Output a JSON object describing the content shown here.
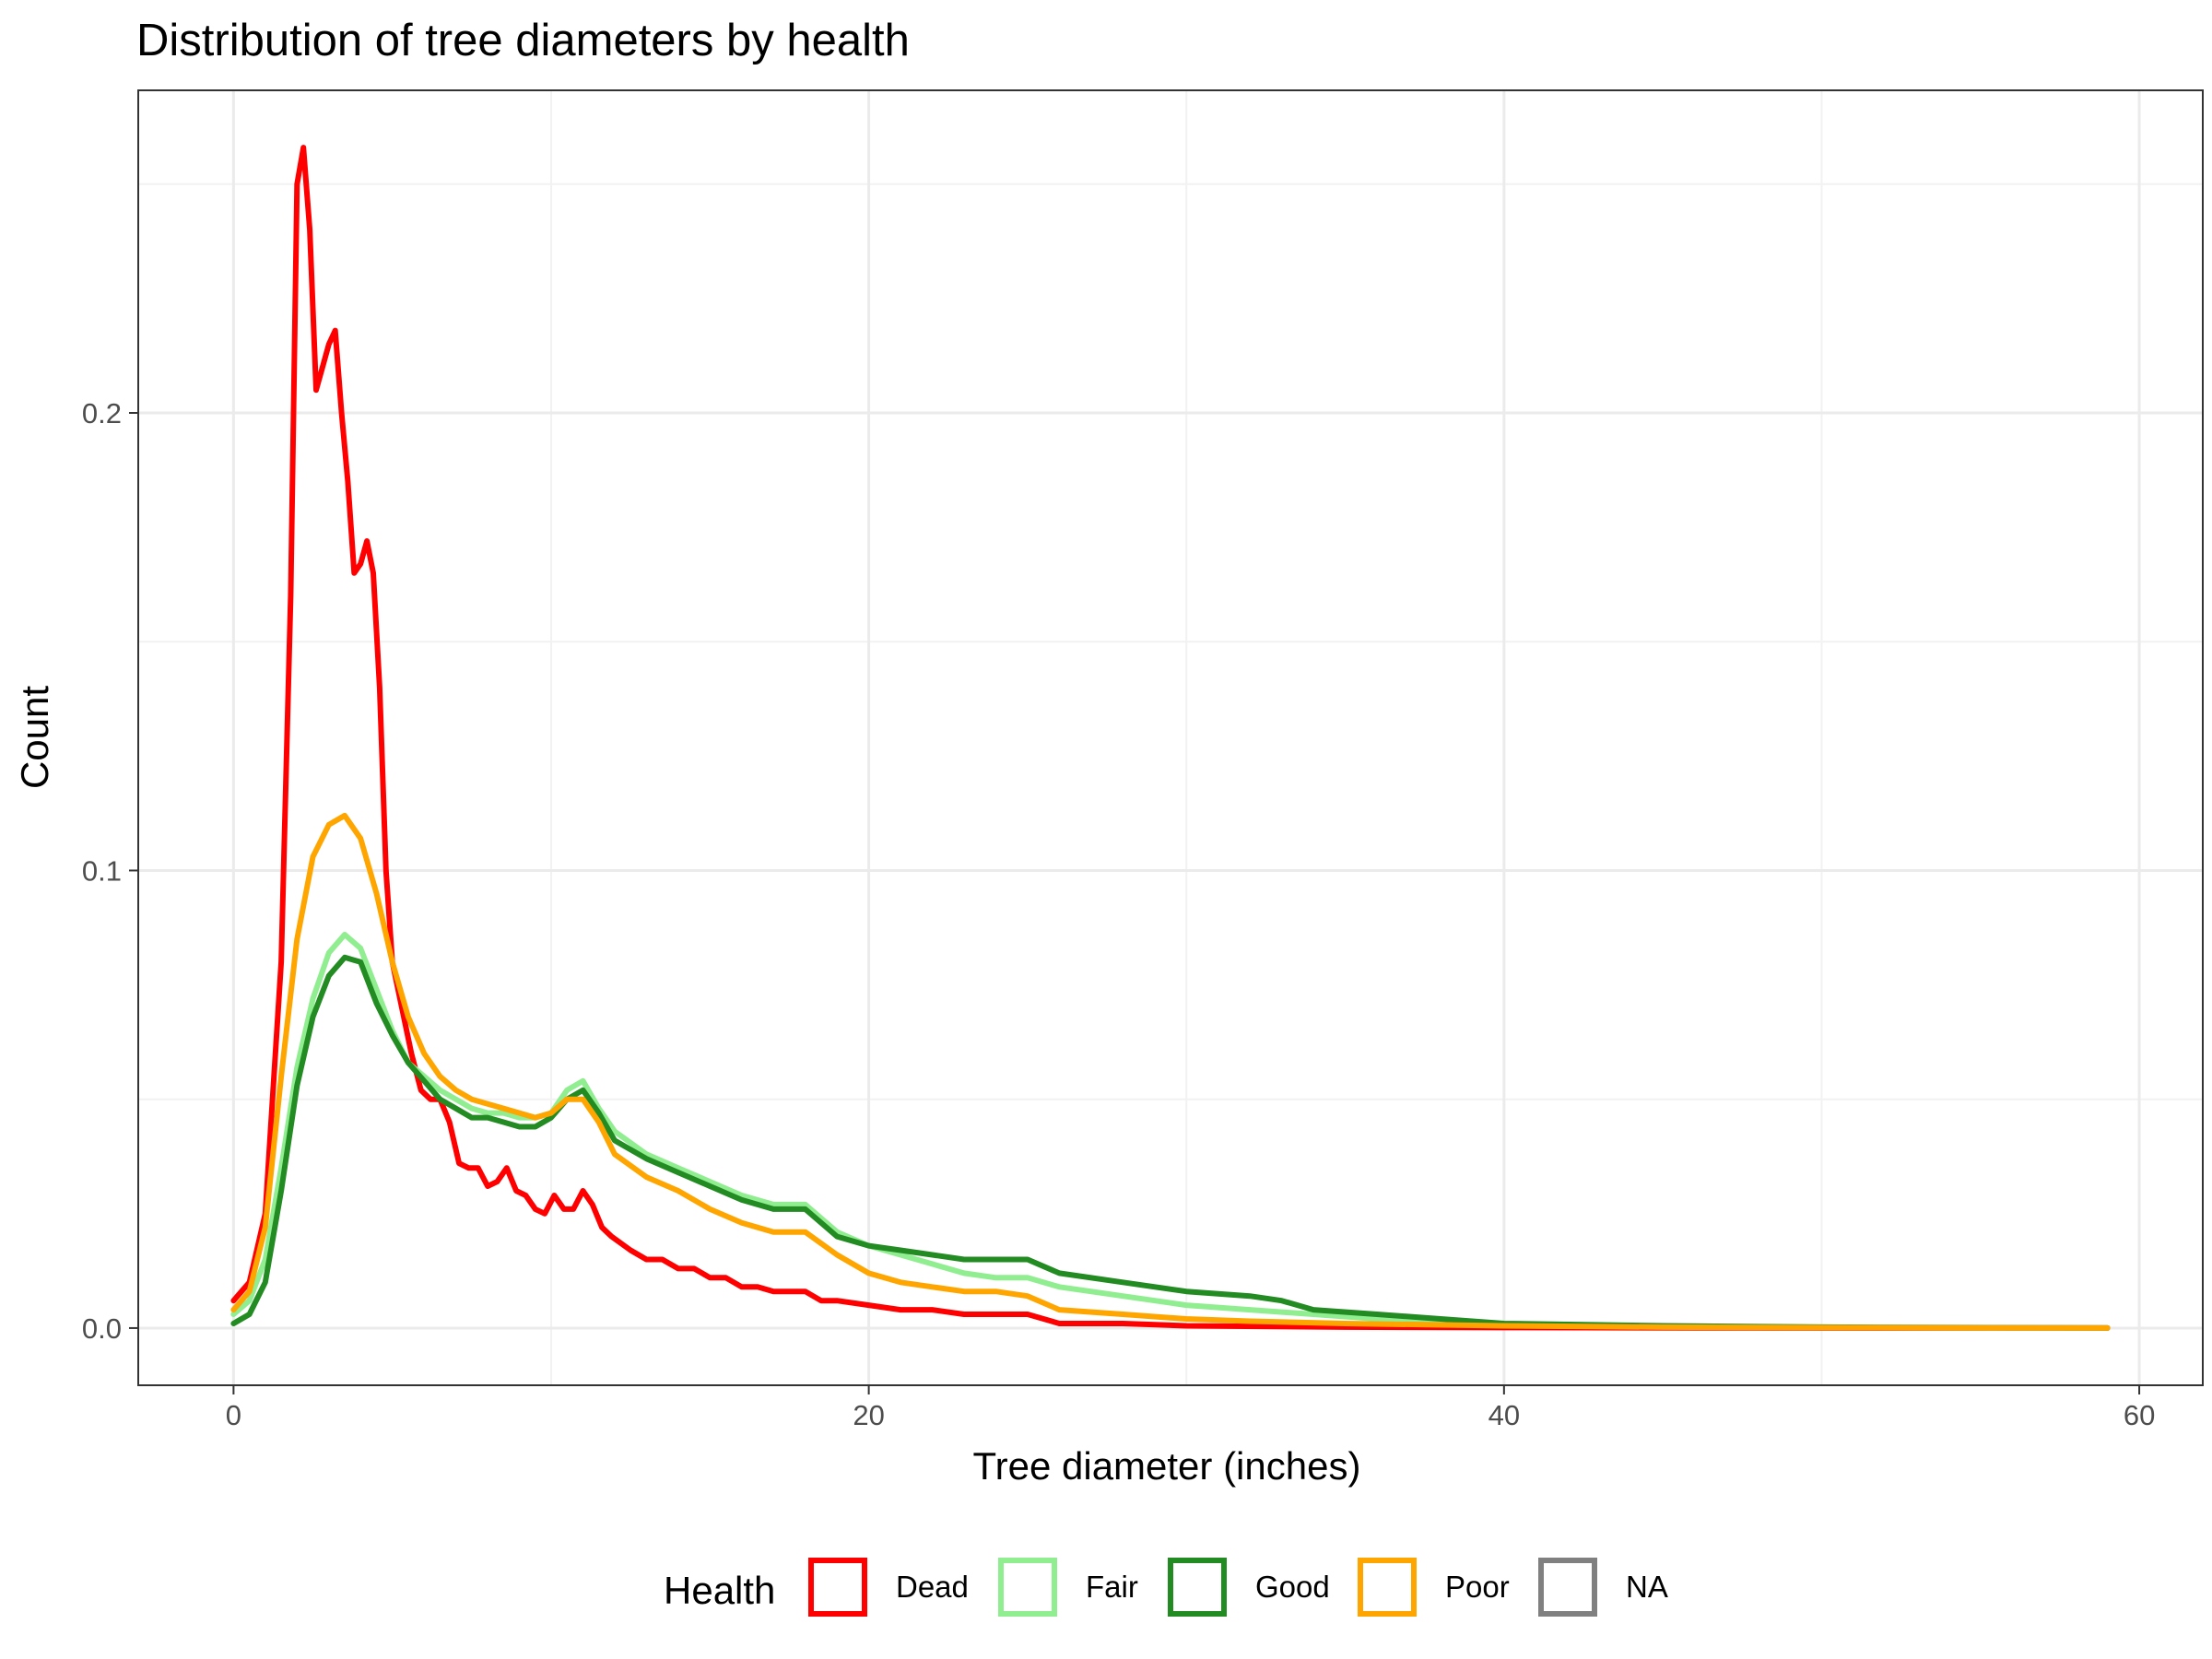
{
  "chart_data": {
    "type": "line",
    "title": "Distribution of tree diameters by health",
    "xlabel": "Tree diameter (inches)",
    "ylabel": "Count",
    "xlim": [
      -3,
      62
    ],
    "ylim": [
      -0.0125,
      0.2705
    ],
    "x_ticks": [
      0,
      20,
      40,
      60
    ],
    "y_ticks": [
      0.0,
      0.1,
      0.2
    ],
    "x_tick_labels": [
      "0",
      "20",
      "40",
      "60"
    ],
    "y_tick_labels": [
      "0.0",
      "0.1",
      "0.2"
    ],
    "grid": true,
    "legend": {
      "title": "Health",
      "position": "bottom"
    },
    "series": [
      {
        "name": "Dead",
        "color": "#FF0000",
        "points": [
          [
            0,
            0.006
          ],
          [
            0.5,
            0.01
          ],
          [
            1,
            0.025
          ],
          [
            1.5,
            0.08
          ],
          [
            1.8,
            0.16
          ],
          [
            2,
            0.25
          ],
          [
            2.2,
            0.258
          ],
          [
            2.4,
            0.24
          ],
          [
            2.6,
            0.205
          ],
          [
            2.8,
            0.21
          ],
          [
            3,
            0.215
          ],
          [
            3.2,
            0.218
          ],
          [
            3.4,
            0.2
          ],
          [
            3.6,
            0.185
          ],
          [
            3.8,
            0.165
          ],
          [
            4,
            0.167
          ],
          [
            4.2,
            0.172
          ],
          [
            4.4,
            0.165
          ],
          [
            4.6,
            0.14
          ],
          [
            4.8,
            0.1
          ],
          [
            5,
            0.08
          ],
          [
            5.3,
            0.07
          ],
          [
            5.6,
            0.06
          ],
          [
            5.9,
            0.052
          ],
          [
            6.2,
            0.05
          ],
          [
            6.5,
            0.05
          ],
          [
            6.8,
            0.045
          ],
          [
            7.1,
            0.036
          ],
          [
            7.4,
            0.035
          ],
          [
            7.7,
            0.035
          ],
          [
            8,
            0.031
          ],
          [
            8.3,
            0.032
          ],
          [
            8.6,
            0.035
          ],
          [
            8.9,
            0.03
          ],
          [
            9.2,
            0.029
          ],
          [
            9.5,
            0.026
          ],
          [
            9.8,
            0.025
          ],
          [
            10.1,
            0.029
          ],
          [
            10.4,
            0.026
          ],
          [
            10.7,
            0.026
          ],
          [
            11,
            0.03
          ],
          [
            11.3,
            0.027
          ],
          [
            11.6,
            0.022
          ],
          [
            11.9,
            0.02
          ],
          [
            12.5,
            0.017
          ],
          [
            13,
            0.015
          ],
          [
            13.5,
            0.015
          ],
          [
            14,
            0.013
          ],
          [
            14.5,
            0.013
          ],
          [
            15,
            0.011
          ],
          [
            15.5,
            0.011
          ],
          [
            16,
            0.009
          ],
          [
            16.5,
            0.009
          ],
          [
            17,
            0.008
          ],
          [
            17.5,
            0.008
          ],
          [
            18,
            0.008
          ],
          [
            18.5,
            0.006
          ],
          [
            19,
            0.006
          ],
          [
            20,
            0.005
          ],
          [
            21,
            0.004
          ],
          [
            22,
            0.004
          ],
          [
            23,
            0.003
          ],
          [
            24,
            0.003
          ],
          [
            25,
            0.003
          ],
          [
            26,
            0.001
          ],
          [
            28,
            0.001
          ],
          [
            30,
            0.0005
          ],
          [
            35,
            0.0002
          ],
          [
            40,
            0.0001
          ],
          [
            50,
            0
          ],
          [
            59,
            0
          ]
        ]
      },
      {
        "name": "Fair",
        "color": "#90EE90",
        "points": [
          [
            0,
            0.003
          ],
          [
            0.5,
            0.006
          ],
          [
            1,
            0.015
          ],
          [
            1.5,
            0.035
          ],
          [
            2,
            0.057
          ],
          [
            2.5,
            0.072
          ],
          [
            3,
            0.082
          ],
          [
            3.5,
            0.086
          ],
          [
            4,
            0.083
          ],
          [
            4.5,
            0.074
          ],
          [
            5,
            0.065
          ],
          [
            5.5,
            0.058
          ],
          [
            6,
            0.055
          ],
          [
            6.5,
            0.052
          ],
          [
            7,
            0.05
          ],
          [
            7.5,
            0.048
          ],
          [
            8,
            0.047
          ],
          [
            8.5,
            0.047
          ],
          [
            9,
            0.046
          ],
          [
            9.5,
            0.046
          ],
          [
            10,
            0.047
          ],
          [
            10.5,
            0.052
          ],
          [
            11,
            0.054
          ],
          [
            11.5,
            0.048
          ],
          [
            12,
            0.043
          ],
          [
            13,
            0.038
          ],
          [
            14,
            0.035
          ],
          [
            15,
            0.032
          ],
          [
            16,
            0.029
          ],
          [
            17,
            0.027
          ],
          [
            18,
            0.027
          ],
          [
            19,
            0.021
          ],
          [
            20,
            0.018
          ],
          [
            21,
            0.016
          ],
          [
            22,
            0.014
          ],
          [
            23,
            0.012
          ],
          [
            24,
            0.011
          ],
          [
            25,
            0.011
          ],
          [
            26,
            0.009
          ],
          [
            28,
            0.007
          ],
          [
            30,
            0.005
          ],
          [
            32,
            0.004
          ],
          [
            34,
            0.003
          ],
          [
            36,
            0.002
          ],
          [
            40,
            0.0008
          ],
          [
            45,
            0.0004
          ],
          [
            50,
            0.0001
          ],
          [
            59,
            0
          ]
        ]
      },
      {
        "name": "Good",
        "color": "#228B22",
        "points": [
          [
            0,
            0.001
          ],
          [
            0.5,
            0.003
          ],
          [
            1,
            0.01
          ],
          [
            1.5,
            0.03
          ],
          [
            2,
            0.053
          ],
          [
            2.5,
            0.068
          ],
          [
            3,
            0.077
          ],
          [
            3.5,
            0.081
          ],
          [
            4,
            0.08
          ],
          [
            4.5,
            0.071
          ],
          [
            5,
            0.064
          ],
          [
            5.5,
            0.058
          ],
          [
            6,
            0.054
          ],
          [
            6.5,
            0.05
          ],
          [
            7,
            0.048
          ],
          [
            7.5,
            0.046
          ],
          [
            8,
            0.046
          ],
          [
            8.5,
            0.045
          ],
          [
            9,
            0.044
          ],
          [
            9.5,
            0.044
          ],
          [
            10,
            0.046
          ],
          [
            10.5,
            0.05
          ],
          [
            11,
            0.052
          ],
          [
            11.5,
            0.047
          ],
          [
            12,
            0.041
          ],
          [
            13,
            0.037
          ],
          [
            14,
            0.034
          ],
          [
            15,
            0.031
          ],
          [
            16,
            0.028
          ],
          [
            17,
            0.026
          ],
          [
            18,
            0.026
          ],
          [
            19,
            0.02
          ],
          [
            20,
            0.018
          ],
          [
            21,
            0.017
          ],
          [
            22,
            0.016
          ],
          [
            23,
            0.015
          ],
          [
            24,
            0.015
          ],
          [
            25,
            0.015
          ],
          [
            26,
            0.012
          ],
          [
            28,
            0.01
          ],
          [
            30,
            0.008
          ],
          [
            32,
            0.007
          ],
          [
            33,
            0.006
          ],
          [
            34,
            0.004
          ],
          [
            36,
            0.003
          ],
          [
            38,
            0.002
          ],
          [
            40,
            0.001
          ],
          [
            45,
            0.0005
          ],
          [
            50,
            0.0002
          ],
          [
            59,
            0
          ]
        ]
      },
      {
        "name": "Poor",
        "color": "#FFA500",
        "points": [
          [
            0,
            0.004
          ],
          [
            0.5,
            0.008
          ],
          [
            1,
            0.022
          ],
          [
            1.5,
            0.055
          ],
          [
            2,
            0.085
          ],
          [
            2.5,
            0.103
          ],
          [
            3,
            0.11
          ],
          [
            3.5,
            0.112
          ],
          [
            4,
            0.107
          ],
          [
            4.5,
            0.095
          ],
          [
            5,
            0.08
          ],
          [
            5.5,
            0.068
          ],
          [
            6,
            0.06
          ],
          [
            6.5,
            0.055
          ],
          [
            7,
            0.052
          ],
          [
            7.5,
            0.05
          ],
          [
            8,
            0.049
          ],
          [
            8.5,
            0.048
          ],
          [
            9,
            0.047
          ],
          [
            9.5,
            0.046
          ],
          [
            10,
            0.047
          ],
          [
            10.5,
            0.05
          ],
          [
            11,
            0.05
          ],
          [
            11.5,
            0.045
          ],
          [
            12,
            0.038
          ],
          [
            13,
            0.033
          ],
          [
            14,
            0.03
          ],
          [
            15,
            0.026
          ],
          [
            16,
            0.023
          ],
          [
            17,
            0.021
          ],
          [
            18,
            0.021
          ],
          [
            19,
            0.016
          ],
          [
            20,
            0.012
          ],
          [
            21,
            0.01
          ],
          [
            22,
            0.009
          ],
          [
            23,
            0.008
          ],
          [
            24,
            0.008
          ],
          [
            25,
            0.007
          ],
          [
            26,
            0.004
          ],
          [
            28,
            0.003
          ],
          [
            30,
            0.002
          ],
          [
            32,
            0.0015
          ],
          [
            35,
            0.001
          ],
          [
            40,
            0.0005
          ],
          [
            45,
            0.0002
          ],
          [
            50,
            0.0001
          ],
          [
            59,
            0
          ]
        ]
      },
      {
        "name": "NA",
        "color": "#808080",
        "points": []
      }
    ]
  }
}
